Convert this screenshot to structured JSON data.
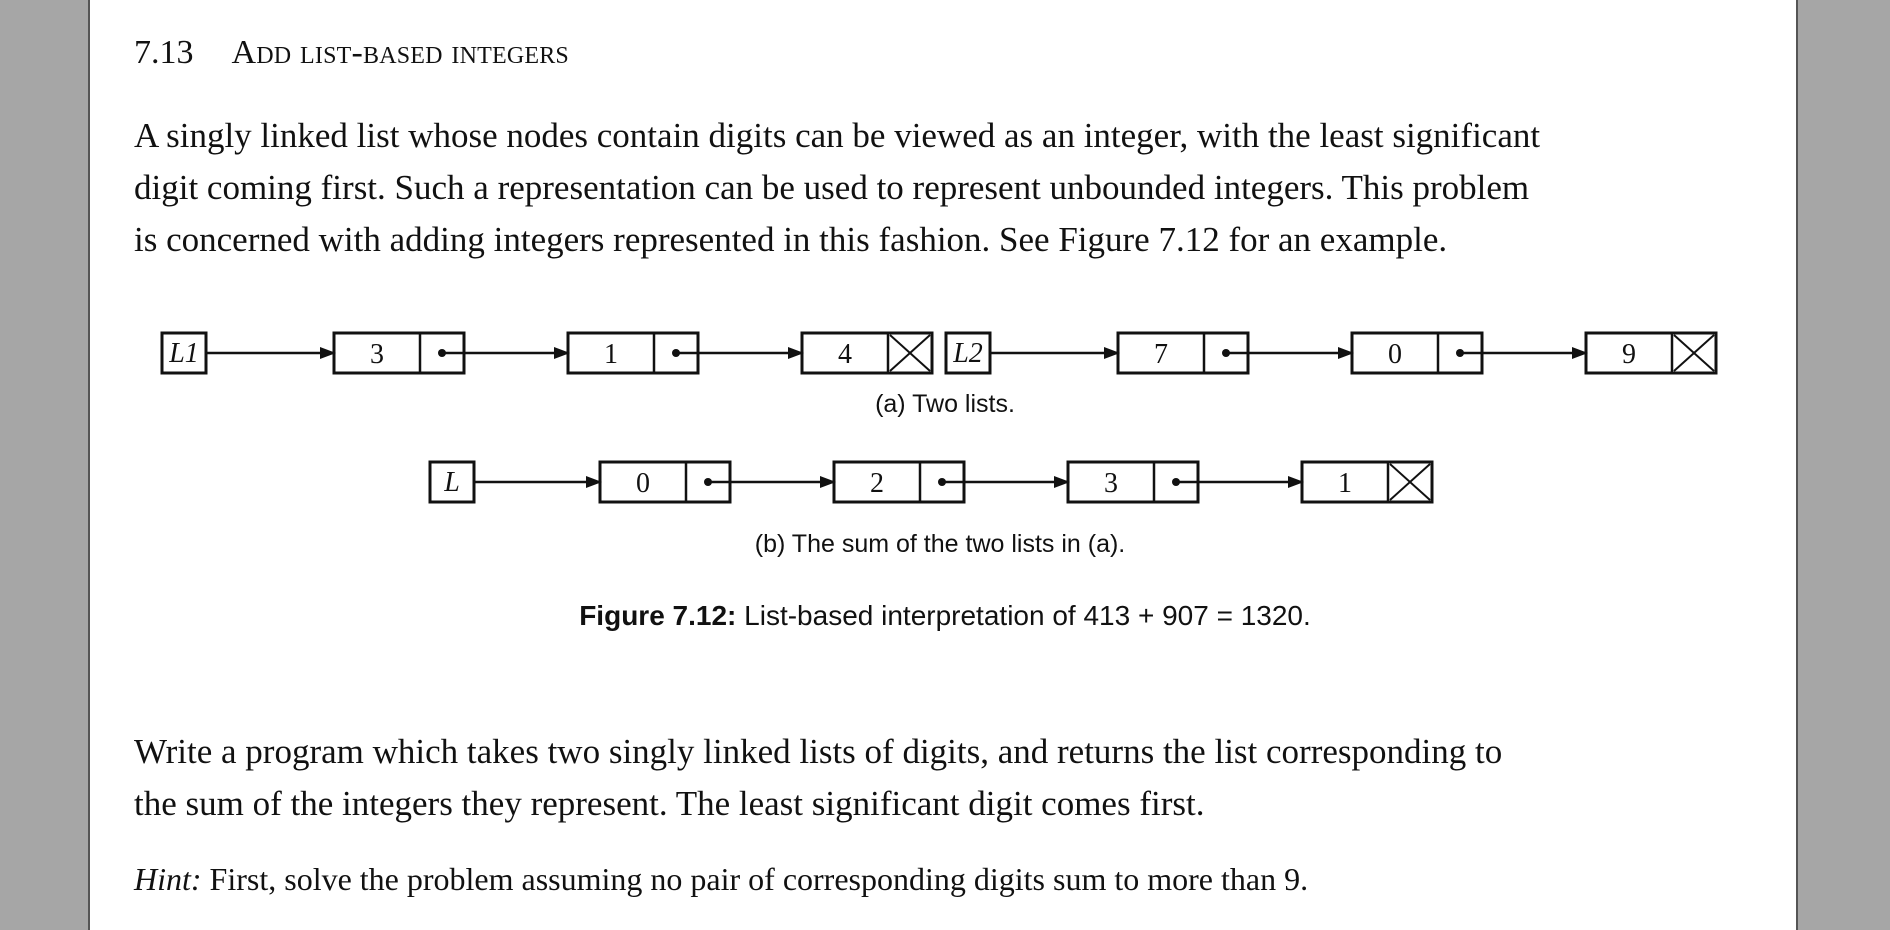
{
  "section": {
    "number": "7.13",
    "title": "Add list-based integers"
  },
  "intro": {
    "lines": [
      "A singly linked list whose nodes contain digits can be viewed as an integer, with the least significant",
      "digit coming first.  Such a representation can be used to represent unbounded integers.  This problem",
      "is concerned with adding integers represented in this fashion.  See Figure 7.12 for an example."
    ]
  },
  "figure": {
    "list_l1": {
      "label": "L1",
      "digits": [
        "3",
        "1",
        "4"
      ]
    },
    "list_l2": {
      "label": "L2",
      "digits": [
        "7",
        "0",
        "9"
      ]
    },
    "subcaption_a": "(a)  Two lists.",
    "list_sum": {
      "label": "L",
      "digits": [
        "0",
        "2",
        "3",
        "1"
      ]
    },
    "subcaption_b": "(b)  The sum of the two lists in (a).",
    "caption_label": "Figure 7.12:",
    "caption_text": " List-based interpretation of 413 + 907 = 1320."
  },
  "task": {
    "lines": [
      "Write a program which takes two singly linked lists of digits, and returns the list corresponding to",
      "the sum of the integers they represent.  The least significant digit comes first."
    ]
  },
  "hint": {
    "label": "Hint:",
    "text": " First, solve the problem assuming no pair of corresponding digits sum to more than 9."
  }
}
